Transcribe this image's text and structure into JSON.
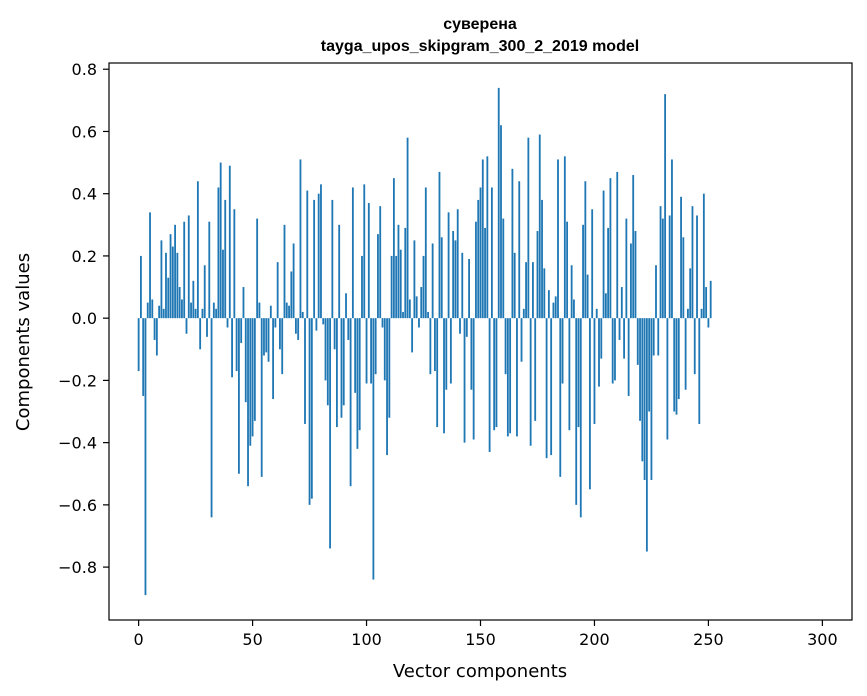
{
  "chart_data": {
    "type": "bar",
    "title_line1": "суверена",
    "title_line2": "tayga_upos_skipgram_300_2_2019 model",
    "xlabel": "Vector components",
    "ylabel": "Components values",
    "xlim": [
      -13,
      313
    ],
    "ylim": [
      -0.97,
      0.82
    ],
    "xticks": [
      0,
      50,
      100,
      150,
      200,
      250,
      300
    ],
    "xtick_labels": [
      "0",
      "50",
      "100",
      "150",
      "200",
      "250",
      "300"
    ],
    "yticks": [
      -0.8,
      -0.6,
      -0.4,
      -0.2,
      0.0,
      0.2,
      0.4,
      0.6,
      0.8
    ],
    "ytick_labels": [
      "−0.8",
      "−0.6",
      "−0.4",
      "−0.2",
      "0.0",
      "0.2",
      "0.4",
      "0.6",
      "0.8"
    ],
    "bar_color": "#1f77b4",
    "values": [
      -0.17,
      0.2,
      -0.25,
      -0.89,
      0.05,
      0.34,
      0.06,
      -0.07,
      -0.12,
      0.04,
      0.25,
      0.03,
      0.21,
      0.13,
      0.27,
      0.23,
      0.3,
      0.21,
      0.1,
      0.06,
      0.31,
      -0.05,
      0.33,
      0.05,
      0.12,
      0.03,
      0.44,
      -0.1,
      0.03,
      0.17,
      -0.06,
      0.31,
      -0.64,
      0.05,
      0.03,
      0.42,
      0.5,
      0.22,
      0.38,
      -0.03,
      0.49,
      -0.19,
      0.35,
      -0.17,
      -0.5,
      -0.08,
      0.1,
      -0.27,
      -0.54,
      -0.41,
      -0.38,
      -0.33,
      0.32,
      0.05,
      -0.51,
      -0.12,
      -0.11,
      -0.14,
      0.04,
      -0.26,
      -0.03,
      0.18,
      -0.1,
      -0.18,
      0.3,
      0.05,
      0.04,
      0.15,
      0.24,
      -0.05,
      -0.07,
      0.51,
      0.02,
      -0.34,
      0.41,
      -0.6,
      -0.58,
      0.38,
      -0.04,
      0.4,
      0.43,
      -0.02,
      -0.2,
      -0.28,
      -0.74,
      0.38,
      -0.1,
      -0.35,
      0.3,
      -0.32,
      -0.28,
      0.08,
      -0.07,
      -0.54,
      0.42,
      -0.24,
      -0.42,
      -0.36,
      0.2,
      0.43,
      -0.21,
      0.37,
      -0.21,
      -0.84,
      -0.18,
      0.27,
      0.36,
      -0.03,
      -0.2,
      -0.44,
      -0.32,
      0.2,
      0.45,
      0.2,
      0.3,
      0.22,
      0.02,
      0.29,
      0.58,
      0.06,
      -0.11,
      0.25,
      0.07,
      -0.03,
      0.1,
      0.2,
      0.42,
      0.02,
      -0.18,
      0.24,
      -0.17,
      -0.35,
      0.47,
      0.26,
      -0.37,
      -0.23,
      0.34,
      -0.21,
      0.28,
      0.25,
      0.35,
      -0.05,
      0.21,
      -0.4,
      -0.06,
      0.19,
      -0.23,
      -0.39,
      0.31,
      0.38,
      0.42,
      0.51,
      0.29,
      0.52,
      -0.43,
      0.42,
      -0.36,
      -0.35,
      0.74,
      0.62,
      0.32,
      -0.18,
      -0.38,
      -0.37,
      0.48,
      0.21,
      -0.38,
      0.44,
      -0.14,
      0.03,
      0.18,
      0.58,
      -0.41,
      0.18,
      -0.33,
      0.28,
      0.59,
      0.38,
      0.16,
      -0.45,
      0.09,
      -0.44,
      0.05,
      0.07,
      0.51,
      -0.51,
      -0.21,
      0.52,
      0.31,
      -0.36,
      0.17,
      0.06,
      -0.6,
      -0.35,
      -0.64,
      0.3,
      0.44,
      0.14,
      -0.55,
      0.35,
      -0.34,
      0.03,
      -0.22,
      -0.13,
      0.41,
      0.08,
      0.29,
      0.45,
      -0.21,
      -0.2,
      0.47,
      -0.07,
      0.1,
      -0.13,
      0.32,
      -0.25,
      0.24,
      0.46,
      0.28,
      -0.15,
      -0.33,
      -0.46,
      -0.52,
      -0.75,
      -0.3,
      -0.52,
      -0.12,
      0.17,
      -0.12,
      0.36,
      0.32,
      0.72,
      -0.39,
      0.33,
      0.51,
      -0.3,
      -0.31,
      -0.26,
      0.39,
      0.26,
      -0.23,
      0.03,
      0.16,
      0.36,
      -0.18,
      0.33,
      -0.34,
      0.03,
      0.4,
      0.1,
      -0.03,
      0.12
    ]
  }
}
